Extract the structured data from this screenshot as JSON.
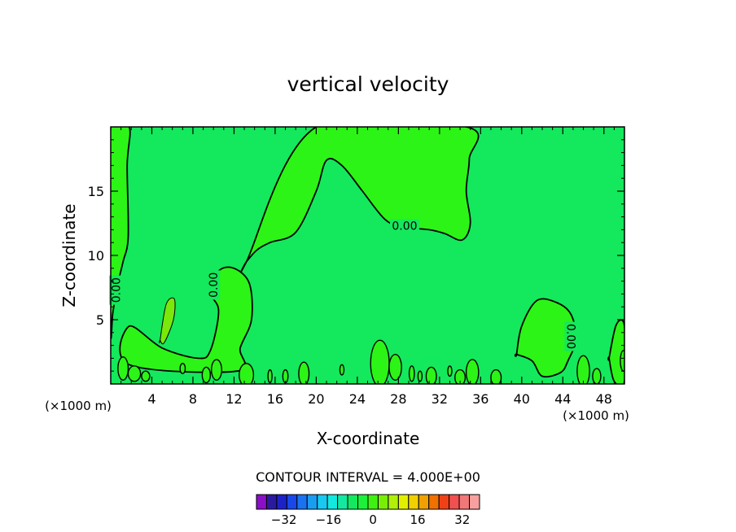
{
  "chart_data": {
    "type": "heatmap",
    "title": "vertical velocity",
    "xlabel": "X-coordinate",
    "ylabel": "Z-coordinate",
    "x_unit": "(×1000 m)",
    "y_unit": "(×1000 m)",
    "xlim": [
      0,
      50
    ],
    "ylim": [
      0,
      20
    ],
    "x_ticks": [
      4,
      8,
      12,
      16,
      20,
      24,
      28,
      32,
      36,
      40,
      44,
      48
    ],
    "y_ticks": [
      5,
      10,
      15
    ],
    "contour_interval_label": "CONTOUR INTERVAL = 4.000E+00",
    "contour_label": "0.00",
    "background_value": 0,
    "regions": [
      {
        "value": 1,
        "note": "upper-left positive region",
        "x": [
          0,
          1.8,
          1.6,
          1.7,
          1.2,
          0.6,
          0.2,
          0
        ],
        "y": [
          20,
          20,
          17,
          11.5,
          9.5,
          7.5,
          5.5,
          4.5
        ]
      },
      {
        "value": 1,
        "note": "left lower plume",
        "x": [
          1.8,
          5,
          8.5,
          9.7,
          10.5,
          9.6,
          10.5,
          12,
          13.5,
          13.7,
          12.6,
          12.3,
          1.8
        ],
        "y": [
          4.5,
          2.8,
          2.0,
          2.6,
          5.7,
          7.2,
          8.8,
          9.0,
          7.8,
          5.0,
          2.8,
          1.0,
          1.5
        ]
      },
      {
        "value": 1,
        "note": "upper central lobe",
        "x": [
          13.2,
          14.2,
          15.5,
          18,
          20,
          21,
          22.5,
          24.5,
          26.7,
          28.5,
          31,
          32.5,
          34.2,
          35,
          34.6,
          34.9,
          34.6,
          20,
          13.2
        ],
        "y": [
          9.5,
          10.4,
          11.0,
          11.8,
          15.0,
          17.4,
          17.0,
          15.0,
          12.8,
          12.2,
          12.0,
          11.7,
          11.2,
          12.5,
          15.0,
          17.5,
          20,
          20,
          9.5
        ]
      },
      {
        "value": 1,
        "note": "lower right plume",
        "x": [
          39.5,
          40,
          41.5,
          43.5,
          44.8,
          45.3,
          44.5,
          43.8,
          42,
          41,
          39.5
        ],
        "y": [
          2.3,
          4.5,
          6.5,
          6.3,
          5.4,
          3.5,
          1.8,
          0.9,
          0.6,
          1.8,
          2.3
        ]
      },
      {
        "value": 1,
        "note": "right edge plume",
        "x": [
          48.5,
          49.2,
          50,
          50,
          49,
          48.5
        ],
        "y": [
          2.0,
          4.6,
          4.5,
          0.2,
          0.2,
          2.0
        ]
      },
      {
        "value": 2,
        "note": "small positive lens",
        "x": [
          4.8,
          5.4,
          6.2,
          6.1,
          5.2,
          4.8
        ],
        "y": [
          3.4,
          6.2,
          6.6,
          5.0,
          3.2,
          3.4
        ]
      }
    ],
    "colorbar": {
      "labels": [
        "-32",
        "-16",
        "0",
        "16",
        "32"
      ],
      "min": -40,
      "max": 40,
      "colors": [
        "#8a10c8",
        "#2a1aa0",
        "#1c22c8",
        "#1848e8",
        "#1a72f0",
        "#1a9cf0",
        "#18c8f0",
        "#12e8e0",
        "#14e8a0",
        "#14e860",
        "#1cf03a",
        "#40f012",
        "#78ee08",
        "#b0f00a",
        "#e2f000",
        "#f0d000",
        "#f0a000",
        "#f07000",
        "#f04018",
        "#f05050",
        "#f07878",
        "#f8a0a0"
      ]
    },
    "grid": false
  },
  "colors": {
    "background": "#ffffff",
    "field": "#14e85c",
    "positive": "#2cf416",
    "positive_strong": "#7ae80a",
    "contour": "#000000"
  }
}
